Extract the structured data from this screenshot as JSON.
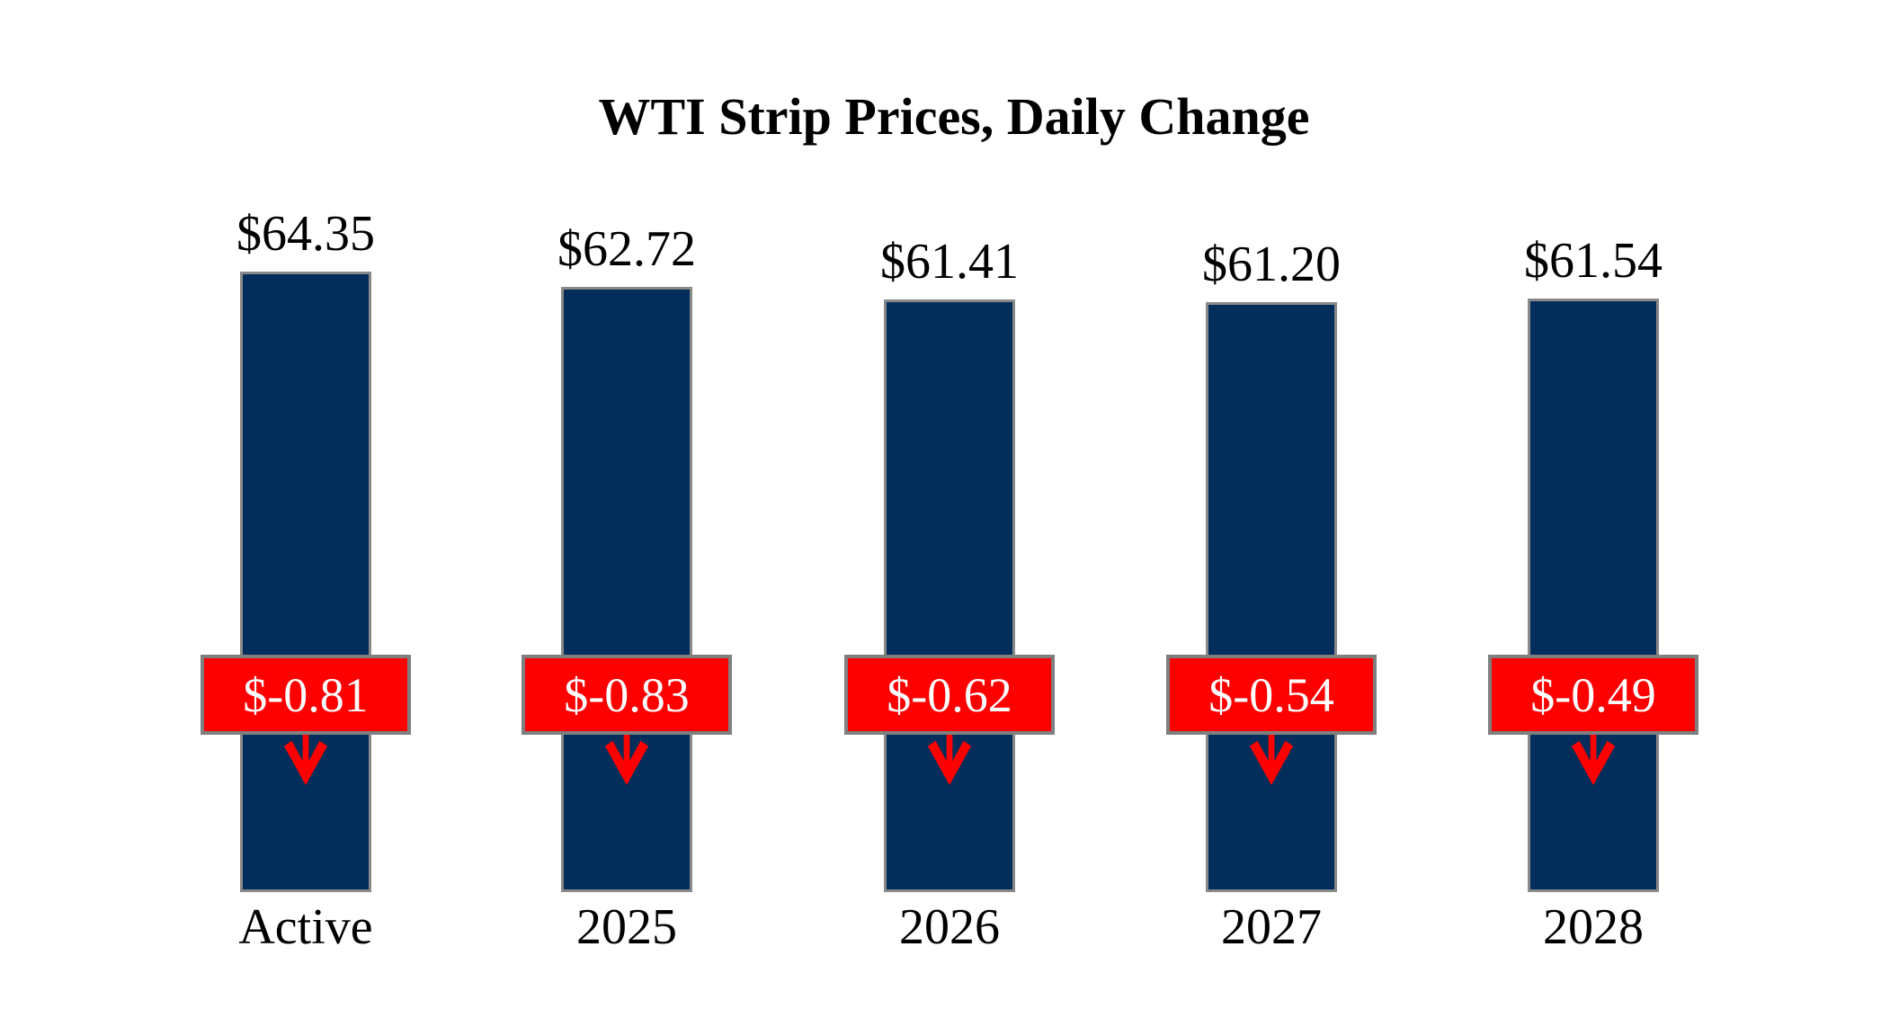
{
  "title": "WTI Strip Prices, Daily Change",
  "chart_data": {
    "type": "bar",
    "title": "WTI Strip Prices, Daily Change",
    "categories": [
      "Active",
      "2025",
      "2026",
      "2027",
      "2028"
    ],
    "series": [
      {
        "name": "WTI strip price",
        "values": [
          64.35,
          62.72,
          61.41,
          61.2,
          61.54
        ]
      },
      {
        "name": "Daily change",
        "values": [
          -0.81,
          -0.83,
          -0.62,
          -0.54,
          -0.49
        ]
      }
    ],
    "xlabel": "",
    "ylabel": "",
    "ylim": [
      0,
      64.35
    ],
    "grid": false,
    "legend": "none",
    "annotations": "red boxes with daily change and down arrows over each bar"
  },
  "bars": [
    {
      "category": "Active",
      "price_label": "$64.35",
      "change_label": "$-0.81"
    },
    {
      "category": "2025",
      "price_label": "$62.72",
      "change_label": "$-0.83"
    },
    {
      "category": "2026",
      "price_label": "$61.41",
      "change_label": "$-0.62"
    },
    {
      "category": "2027",
      "price_label": "$61.20",
      "change_label": "$-0.54"
    },
    {
      "category": "2028",
      "price_label": "$61.54",
      "change_label": "$-0.49"
    }
  ],
  "icons": {
    "down_arrow": "down-arrow-icon"
  },
  "colors": {
    "background": "#ffffff",
    "text": "#000000",
    "bar_fill": "#032e5b",
    "bar_border": "#898989",
    "change_fill": "#fd0000",
    "change_border": "#7f7f7f",
    "change_text": "#ffffff",
    "arrow": "#fd0000"
  }
}
